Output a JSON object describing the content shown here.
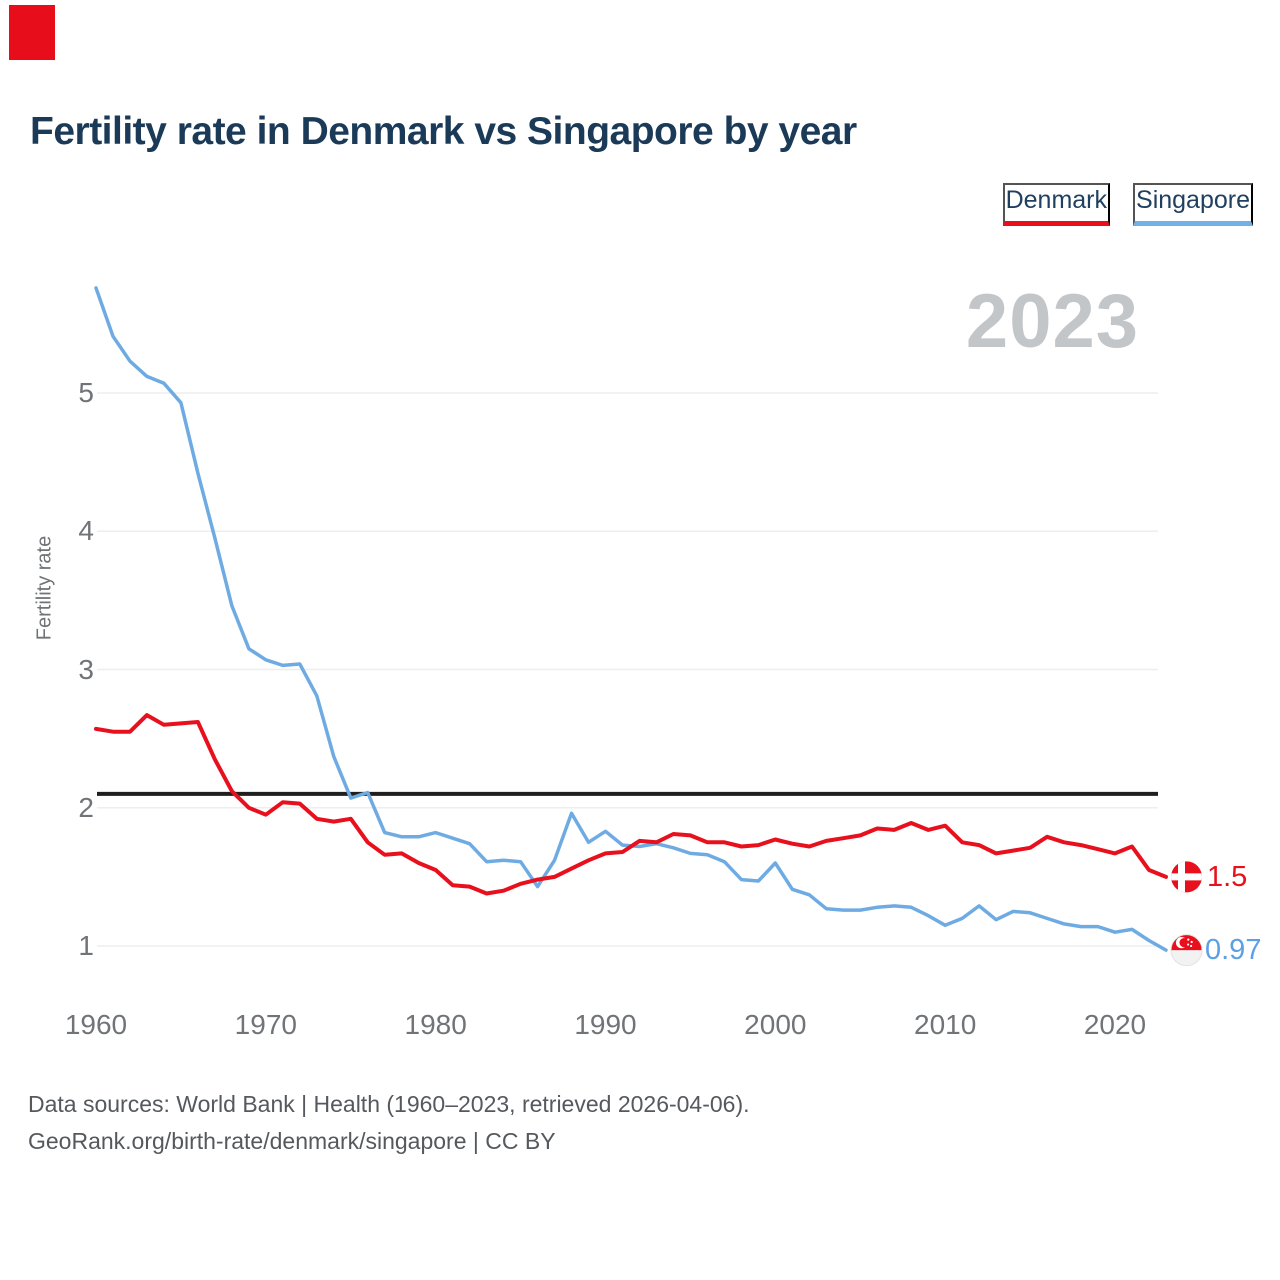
{
  "page": {
    "title": "Fertility rate in Denmark vs Singapore by year",
    "watermark_year": "2023",
    "footer_line1": "Data sources: World Bank | Health (1960–2023, retrieved 2026-04-06).",
    "footer_line2": "GeoRank.org/birth-rate/denmark/singapore | CC BY"
  },
  "legend": {
    "items": [
      {
        "label": "Denmark",
        "color": "#e8101d"
      },
      {
        "label": "Singapore",
        "color": "#6fabe3"
      }
    ]
  },
  "chart_data": {
    "type": "line",
    "title": "Fertility rate in Denmark vs Singapore by year",
    "xlabel": "",
    "ylabel": "Fertility rate",
    "ylim": [
      0.75,
      5.9
    ],
    "grid": true,
    "legend_position": "top-right",
    "current_year_watermark": "2023",
    "y_ticks": [
      1,
      2,
      3,
      4,
      5
    ],
    "x_ticks": [
      1960,
      1970,
      1980,
      1990,
      2000,
      2010,
      2020
    ],
    "reference_line": {
      "value": 2.1,
      "color": "#1f1f1f"
    },
    "x": [
      1960,
      1961,
      1962,
      1963,
      1964,
      1965,
      1966,
      1967,
      1968,
      1969,
      1970,
      1971,
      1972,
      1973,
      1974,
      1975,
      1976,
      1977,
      1978,
      1979,
      1980,
      1981,
      1982,
      1983,
      1984,
      1985,
      1986,
      1987,
      1988,
      1989,
      1990,
      1991,
      1992,
      1993,
      1994,
      1995,
      1996,
      1997,
      1998,
      1999,
      2000,
      2001,
      2002,
      2003,
      2004,
      2005,
      2006,
      2007,
      2008,
      2009,
      2010,
      2011,
      2012,
      2013,
      2014,
      2015,
      2016,
      2017,
      2018,
      2019,
      2020,
      2021,
      2022,
      2023
    ],
    "series": [
      {
        "name": "Denmark",
        "color": "#e8101d",
        "end_label": "1.5",
        "flag": "denmark",
        "values": [
          2.57,
          2.55,
          2.55,
          2.67,
          2.6,
          2.61,
          2.62,
          2.35,
          2.12,
          2.0,
          1.95,
          2.04,
          2.03,
          1.92,
          1.9,
          1.92,
          1.75,
          1.66,
          1.67,
          1.6,
          1.55,
          1.44,
          1.43,
          1.38,
          1.4,
          1.45,
          1.48,
          1.5,
          1.56,
          1.62,
          1.67,
          1.68,
          1.76,
          1.75,
          1.81,
          1.8,
          1.75,
          1.75,
          1.72,
          1.73,
          1.77,
          1.74,
          1.72,
          1.76,
          1.78,
          1.8,
          1.85,
          1.84,
          1.89,
          1.84,
          1.87,
          1.75,
          1.73,
          1.67,
          1.69,
          1.71,
          1.79,
          1.75,
          1.73,
          1.7,
          1.67,
          1.72,
          1.55,
          1.5
        ]
      },
      {
        "name": "Singapore",
        "color": "#6fabe3",
        "end_label": "0.97",
        "flag": "singapore",
        "values": [
          5.76,
          5.41,
          5.23,
          5.12,
          5.07,
          4.93,
          4.42,
          3.95,
          3.46,
          3.15,
          3.07,
          3.03,
          3.04,
          2.81,
          2.37,
          2.07,
          2.11,
          1.82,
          1.79,
          1.79,
          1.82,
          1.78,
          1.74,
          1.61,
          1.62,
          1.61,
          1.43,
          1.62,
          1.96,
          1.75,
          1.83,
          1.73,
          1.72,
          1.74,
          1.71,
          1.67,
          1.66,
          1.61,
          1.48,
          1.47,
          1.6,
          1.41,
          1.37,
          1.27,
          1.26,
          1.26,
          1.28,
          1.29,
          1.28,
          1.22,
          1.15,
          1.2,
          1.29,
          1.19,
          1.25,
          1.24,
          1.2,
          1.16,
          1.14,
          1.14,
          1.1,
          1.12,
          1.04,
          0.97
        ]
      }
    ]
  }
}
